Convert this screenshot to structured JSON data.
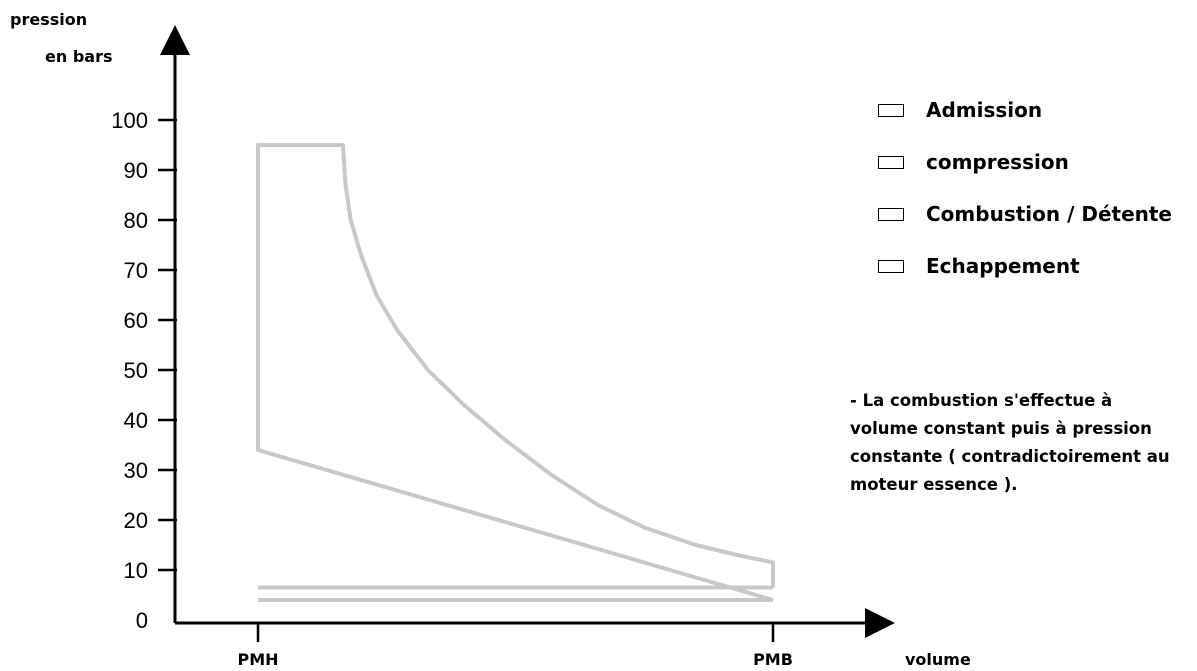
{
  "chart_data": {
    "type": "line",
    "ylabel_line1": "pression",
    "ylabel_line2": "en bars",
    "xlabel": "volume",
    "x_ticks": [
      "PMH",
      "PMB"
    ],
    "y_ticks": [
      "0",
      "10",
      "20",
      "30",
      "40",
      "50",
      "60",
      "70",
      "80",
      "90",
      "100"
    ],
    "ylim": [
      0,
      100
    ],
    "series": [
      {
        "line_color": "#c8c8c8",
        "points": [
          {
            "x": 0.0,
            "y": 6.5
          },
          {
            "x": 1.0,
            "y": 6.5
          }
        ]
      },
      {
        "line_color": "#c8c8c8",
        "points": [
          {
            "x": 1.0,
            "y": 4
          },
          {
            "x": 0.0,
            "y": 34
          },
          {
            "x": 0.0,
            "y": 95
          },
          {
            "x": 0.165,
            "y": 95
          },
          {
            "x": 0.17,
            "y": 87
          },
          {
            "x": 0.18,
            "y": 80
          },
          {
            "x": 0.2,
            "y": 73
          },
          {
            "x": 0.23,
            "y": 65
          },
          {
            "x": 0.27,
            "y": 58
          },
          {
            "x": 0.33,
            "y": 50
          },
          {
            "x": 0.4,
            "y": 43
          },
          {
            "x": 0.48,
            "y": 36
          },
          {
            "x": 0.57,
            "y": 29
          },
          {
            "x": 0.66,
            "y": 23
          },
          {
            "x": 0.75,
            "y": 18.5
          },
          {
            "x": 0.85,
            "y": 15
          },
          {
            "x": 0.93,
            "y": 13
          },
          {
            "x": 1.0,
            "y": 11.5
          },
          {
            "x": 1.0,
            "y": 6.5
          }
        ]
      },
      {
        "line_color": "#c8c8c8",
        "points": [
          {
            "x": 0.0,
            "y": 4
          },
          {
            "x": 1.0,
            "y": 4
          }
        ]
      }
    ]
  },
  "legend": {
    "items": [
      {
        "label": "Admission"
      },
      {
        "label": "compression"
      },
      {
        "label": "Combustion / Détente"
      },
      {
        "label": "Echappement"
      }
    ]
  },
  "note": {
    "lines": [
      "- La combustion s'effectue à",
      "volume constant puis à pression",
      "constante ( contradictoirement au",
      "moteur essence )."
    ]
  }
}
